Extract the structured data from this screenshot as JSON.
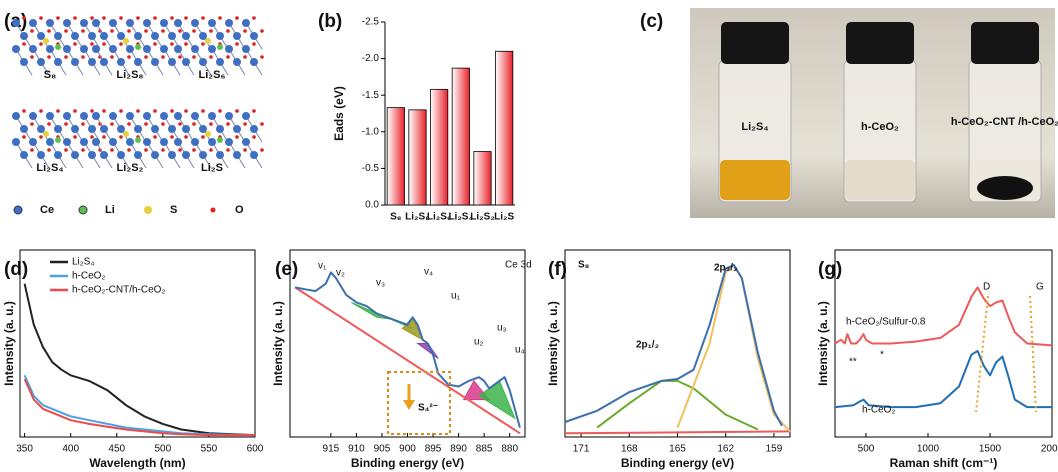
{
  "labels": [
    "(a)",
    "(b)",
    "(c)",
    "(d)",
    "(e)",
    "(f)",
    "(g)"
  ],
  "panel_a": {
    "structures": [
      "S₈",
      "Li₂S₈",
      "Li₂S₆",
      "Li₂S₄",
      "Li₂S₂",
      "Li₂S"
    ],
    "legend": [
      {
        "name": "Ce",
        "color": "#3f6fc2"
      },
      {
        "name": "Li",
        "color": "#5cc24e"
      },
      {
        "name": "S",
        "color": "#e6d23c"
      },
      {
        "name": "O",
        "color": "#e02020"
      }
    ]
  },
  "panel_c": {
    "vials": [
      "Li₂S₄",
      "h-CeO₂",
      "h-CeO₂-CNT /h-CeO₂"
    ]
  },
  "chart_data": [
    {
      "type": "bar",
      "categories": [
        "S₈",
        "Li₂S₈",
        "Li₂S₆",
        "Li₂S₄",
        "Li₂S₂",
        "Li₂S"
      ],
      "values": [
        -1.33,
        -1.3,
        -1.58,
        -1.87,
        -0.73,
        -2.1
      ],
      "color": "#e8232b",
      "ylabel": "Eads (eV)",
      "ylim": [
        0,
        -2.5
      ],
      "yticks": [
        {
          "value": 0,
          "label": "0.0"
        },
        -0.5,
        {
          "value": -1,
          "label": "-1.0"
        },
        -1.5,
        {
          "value": -2,
          "label": "-2.0"
        },
        -2.5
      ]
    },
    {
      "type": "line",
      "xlabel": "Wavelength (nm)",
      "ylabel": "Intensity (a. u.)",
      "xlim": [
        345,
        600
      ],
      "ylim": [
        0,
        1
      ],
      "xticks": [
        350,
        400,
        450,
        500,
        550,
        600
      ],
      "legend": "upper right",
      "annotations": [
        "S₄²⁻"
      ],
      "series": [
        {
          "name": "Li₂S₄",
          "color": "#222222",
          "x": [
            350,
            360,
            370,
            380,
            390,
            400,
            420,
            440,
            460,
            480,
            500,
            520,
            550,
            600
          ],
          "values": [
            0.82,
            0.6,
            0.48,
            0.4,
            0.36,
            0.33,
            0.3,
            0.25,
            0.17,
            0.11,
            0.07,
            0.04,
            0.02,
            0.01
          ]
        },
        {
          "name": "h-CeO₂",
          "color": "#4aa3e0",
          "x": [
            350,
            360,
            370,
            380,
            390,
            400,
            420,
            440,
            460,
            480,
            500,
            520,
            550,
            600
          ],
          "values": [
            0.33,
            0.22,
            0.17,
            0.15,
            0.13,
            0.11,
            0.09,
            0.07,
            0.05,
            0.04,
            0.03,
            0.02,
            0.015,
            0.01
          ]
        },
        {
          "name": "h-CeO₂-CNT/h-CeO₂",
          "color": "#ee4a4a",
          "x": [
            350,
            360,
            370,
            380,
            390,
            400,
            420,
            440,
            460,
            480,
            500,
            520,
            550,
            600
          ],
          "values": [
            0.31,
            0.2,
            0.15,
            0.13,
            0.11,
            0.09,
            0.07,
            0.055,
            0.04,
            0.03,
            0.02,
            0.015,
            0.01,
            0.01
          ]
        }
      ]
    },
    {
      "type": "line",
      "xlabel": "Binding energy (eV)",
      "ylabel": "Intensity (a. u.)",
      "xlim": [
        923,
        877
      ],
      "ylim": [
        0,
        1
      ],
      "xticks": [
        915,
        910,
        905,
        900,
        895,
        890,
        885,
        880
      ],
      "annotations": [
        "Ce 3d",
        "v₁",
        "v₂",
        "v₃",
        "v₄",
        "u₁",
        "u₂",
        "u₃",
        "u₄"
      ],
      "series": [
        {
          "color": "#3cb44b",
          "fill": true,
          "x": [
            911,
            906,
            903,
            899
          ],
          "values": [
            0.72,
            0.64,
            0.63,
            0.58
          ]
        },
        {
          "color": "#9a9a1e",
          "fill": true,
          "x": [
            901,
            899,
            897
          ],
          "values": [
            0.58,
            0.64,
            0.52
          ]
        },
        {
          "color": "#8e3fb0",
          "fill": true,
          "x": [
            898,
            896,
            894
          ],
          "values": [
            0.5,
            0.5,
            0.42
          ]
        },
        {
          "color": "#d63a8a",
          "fill": true,
          "x": [
            889,
            887,
            884
          ],
          "values": [
            0.2,
            0.3,
            0.2
          ]
        },
        {
          "color": "#3cb44b",
          "fill": true,
          "x": [
            886,
            882,
            879
          ],
          "values": [
            0.22,
            0.3,
            0.1
          ]
        },
        {
          "color": "#ee5a5a",
          "x": [
            922,
            878
          ],
          "values": [
            0.8,
            0.02
          ]
        },
        {
          "color": "#3b6fb0",
          "x": [
            922,
            920,
            918,
            916,
            915,
            914,
            912,
            910,
            908,
            906,
            904,
            902,
            900,
            899,
            898,
            897,
            896,
            895,
            894,
            892,
            890,
            888,
            886,
            885,
            884,
            882,
            881,
            880,
            879,
            878
          ],
          "values": [
            0.8,
            0.79,
            0.78,
            0.82,
            0.88,
            0.85,
            0.76,
            0.72,
            0.7,
            0.66,
            0.64,
            0.62,
            0.6,
            0.64,
            0.6,
            0.52,
            0.5,
            0.44,
            0.34,
            0.28,
            0.27,
            0.3,
            0.32,
            0.3,
            0.26,
            0.3,
            0.32,
            0.25,
            0.15,
            0.05
          ]
        }
      ]
    },
    {
      "type": "line",
      "xlabel": "Binding energy (eV)",
      "ylabel": "Intensity (a. u.)",
      "xlim": [
        172,
        158
      ],
      "ylim": [
        0,
        1
      ],
      "xticks": [
        171,
        168,
        165,
        162,
        159
      ],
      "annotations": [
        "S₈",
        "2p₁/₂",
        "2p₃/₂"
      ],
      "series": [
        {
          "color": "#ee5a5a",
          "x": [
            172,
            158
          ],
          "values": [
            0.02,
            0.03
          ]
        },
        {
          "color": "#6aaa2a",
          "x": [
            170,
            168,
            166,
            165,
            164,
            162,
            160
          ],
          "values": [
            0.05,
            0.18,
            0.3,
            0.3,
            0.26,
            0.12,
            0.04
          ]
        },
        {
          "color": "#f0c060",
          "x": [
            165,
            163,
            162,
            161.5,
            161,
            160,
            159,
            158
          ],
          "values": [
            0.05,
            0.5,
            0.88,
            0.92,
            0.85,
            0.42,
            0.12,
            0.03
          ]
        },
        {
          "color": "#3b6fb0",
          "x": [
            172,
            170,
            168,
            166,
            165,
            164,
            163,
            162,
            161.5,
            161,
            160,
            159,
            158.5
          ],
          "values": [
            0.08,
            0.14,
            0.24,
            0.3,
            0.31,
            0.36,
            0.6,
            0.9,
            0.92,
            0.85,
            0.45,
            0.14,
            0.06
          ]
        }
      ]
    },
    {
      "type": "line",
      "xlabel": "Raman shift (cm⁻¹)",
      "ylabel": "Intensity (a. u.)",
      "xlim": [
        250,
        2000
      ],
      "ylim": [
        0,
        1
      ],
      "xticks": [
        500,
        1000,
        1500,
        2000
      ],
      "annotations": [
        "h-CeO₂/Sulfur-0.8",
        "D",
        "G",
        "**",
        "*",
        "h-CeO₂"
      ],
      "series": [
        {
          "color": "#ee5a5a",
          "x": [
            250,
            300,
            330,
            350,
            380,
            420,
            450,
            480,
            500,
            550,
            700,
            900,
            1100,
            1250,
            1350,
            1400,
            1450,
            1500,
            1550,
            1600,
            1650,
            1700,
            1800,
            2000
          ],
          "values": [
            0.5,
            0.52,
            0.5,
            0.55,
            0.5,
            0.5,
            0.52,
            0.55,
            0.52,
            0.5,
            0.5,
            0.51,
            0.53,
            0.6,
            0.75,
            0.8,
            0.74,
            0.7,
            0.72,
            0.73,
            0.64,
            0.56,
            0.5,
            0.49
          ]
        },
        {
          "color": "#1f6fb4",
          "x": [
            250,
            400,
            450,
            480,
            520,
            700,
            900,
            1100,
            1250,
            1350,
            1400,
            1450,
            1500,
            1550,
            1600,
            1650,
            1700,
            1800,
            2000
          ],
          "values": [
            0.16,
            0.17,
            0.19,
            0.2,
            0.17,
            0.16,
            0.16,
            0.18,
            0.27,
            0.44,
            0.46,
            0.38,
            0.33,
            0.4,
            0.43,
            0.32,
            0.2,
            0.16,
            0.16
          ]
        }
      ]
    }
  ]
}
